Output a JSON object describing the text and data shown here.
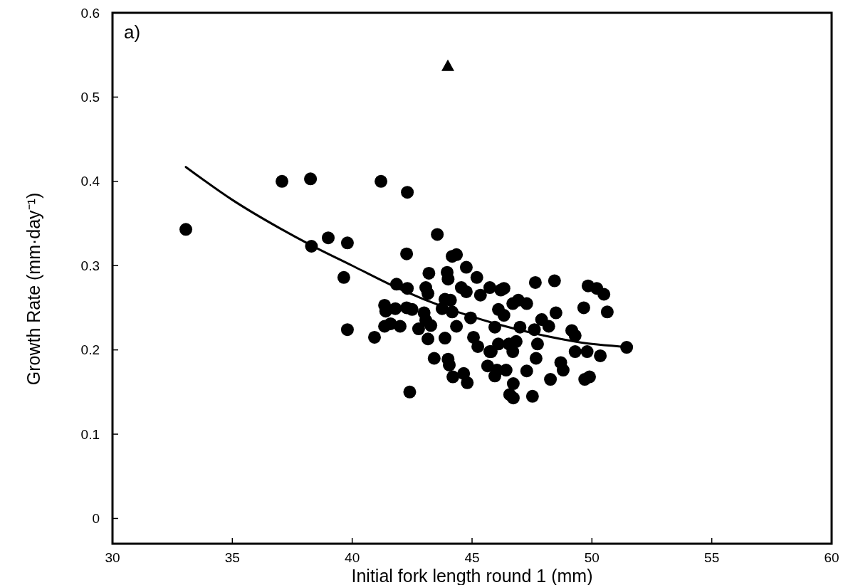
{
  "chart_data": {
    "type": "scatter",
    "xlabel": "Initial fork length round 1 (mm)",
    "ylabel": "Growth Rate (mm·day⁻¹)",
    "annotations": [
      "a)"
    ],
    "xlim": [
      30,
      60
    ],
    "ylim": [
      -0.03,
      0.6
    ],
    "xticks": [
      30,
      35,
      40,
      45,
      50,
      55,
      60
    ],
    "yticks": [
      0,
      0.1,
      0.2,
      0.3,
      0.4,
      0.5,
      0.6
    ],
    "grid": false,
    "series": [
      {
        "marker": "circle",
        "color": "#000000",
        "x": [
          33.06,
          37.07,
          38.26,
          38.3,
          39.0,
          39.8,
          39.65,
          39.8,
          43.55,
          42.27,
          44.35,
          44.17,
          43.2,
          43.96,
          44.0,
          44.76,
          45.2,
          41.85,
          42.3,
          43.07,
          43.16,
          44.55,
          44.76,
          45.35,
          45.74,
          46.2,
          43.87,
          44.1,
          41.35,
          41.4,
          41.8,
          42.27,
          42.5,
          43.0,
          43.75,
          44.17,
          43.07,
          44.94,
          46.1,
          41.35,
          42.0,
          41.6,
          42.77,
          43.28,
          44.35,
          40.93,
          43.16,
          43.87,
          45.06,
          45.24,
          45.74,
          46.1,
          43.42,
          44.0,
          44.05,
          44.2,
          44.65,
          44.8,
          45.65,
          45.95,
          42.4,
          46.33,
          47.64,
          48.44,
          49.84,
          50.2,
          50.5,
          49.66,
          50.64,
          46.93,
          47.28,
          46.7,
          46.33,
          47.9,
          48.5,
          48.2,
          45.95,
          47.0,
          47.6,
          49.16,
          49.3,
          46.54,
          46.84,
          47.73,
          51.45,
          49.3,
          49.8,
          50.35,
          45.8,
          46.7,
          47.67,
          48.7,
          48.8,
          48.27,
          49.9,
          49.7,
          47.28,
          46.04,
          46.42,
          46.72,
          46.57,
          46.72,
          47.52,
          41.2,
          42.3
        ],
        "values": [
          0.343,
          0.4,
          0.403,
          0.323,
          0.333,
          0.327,
          0.286,
          0.224,
          0.337,
          0.314,
          0.313,
          0.311,
          0.291,
          0.292,
          0.284,
          0.298,
          0.286,
          0.278,
          0.273,
          0.274,
          0.267,
          0.274,
          0.269,
          0.265,
          0.274,
          0.271,
          0.26,
          0.259,
          0.253,
          0.246,
          0.249,
          0.25,
          0.248,
          0.244,
          0.249,
          0.245,
          0.235,
          0.238,
          0.248,
          0.228,
          0.228,
          0.231,
          0.225,
          0.229,
          0.228,
          0.215,
          0.213,
          0.214,
          0.215,
          0.204,
          0.198,
          0.207,
          0.19,
          0.189,
          0.182,
          0.168,
          0.172,
          0.161,
          0.181,
          0.169,
          0.15,
          0.273,
          0.28,
          0.282,
          0.276,
          0.273,
          0.266,
          0.25,
          0.245,
          0.259,
          0.255,
          0.255,
          0.241,
          0.236,
          0.244,
          0.228,
          0.227,
          0.227,
          0.224,
          0.223,
          0.217,
          0.207,
          0.21,
          0.207,
          0.203,
          0.198,
          0.198,
          0.193,
          0.198,
          0.198,
          0.19,
          0.185,
          0.176,
          0.165,
          0.168,
          0.165,
          0.175,
          0.176,
          0.176,
          0.16,
          0.147,
          0.143,
          0.145,
          0.4,
          0.387
        ]
      },
      {
        "type": "scatter",
        "marker": "triangle",
        "color": "#000000",
        "x": [
          43.99
        ],
        "values": [
          0.537
        ]
      },
      {
        "type": "line",
        "marker": "none",
        "line_style": "solid",
        "color": "#000000",
        "x": [
          33.06,
          35,
          37,
          38.3,
          40,
          42,
          44,
          46,
          48,
          50,
          51.2
        ],
        "values": [
          0.417,
          0.378,
          0.344,
          0.324,
          0.3,
          0.272,
          0.249,
          0.231,
          0.217,
          0.207,
          0.204
        ]
      }
    ]
  }
}
